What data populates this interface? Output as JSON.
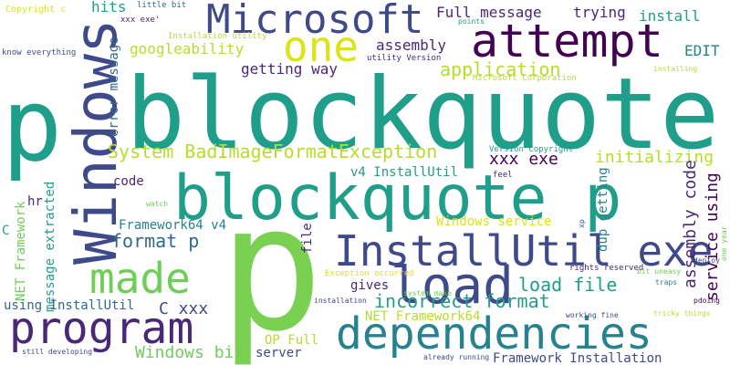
{
  "colors": {
    "teal": "#1f9e89",
    "navy": "#3e4a89",
    "purple": "#482878",
    "dark": "#440154",
    "green": "#6ece58",
    "lime": "#b5de2b",
    "yellow": "#dde318",
    "cyan": "#26828e",
    "slate": "#31688e"
  },
  "words": [
    "blockquote",
    "p",
    "Windows",
    "blockquote p",
    "attempt",
    "Microsoft",
    "one",
    "load",
    "InstallUtil exe",
    "made",
    "program",
    "dependencies",
    "incorrect format",
    "load file",
    "System BadImageFormatException",
    "Windows bit",
    "format p",
    "application",
    "initializing",
    "assembly code",
    "service using",
    "getting way",
    "googleability",
    "error message",
    "xxx exe",
    "Full message",
    "trying",
    "install",
    "EDIT",
    "assembly",
    "hits",
    "Copyright c",
    "little bit",
    "xxx exe'",
    "Installation utility",
    "utility Version",
    "know everything",
    "points",
    "Microsoft Corporation",
    "installing",
    "code",
    "v4 InstallUtil",
    "Version Copyright",
    "feel",
    "xp",
    "deploy",
    "dup getting",
    "Framework64 v4",
    "message extracted",
    "NET Framework",
    "hr",
    "C",
    "watch",
    "Windows service",
    "file",
    "Exception occurred",
    "system make",
    "rights reserved",
    "bit uneasy",
    "one year",
    "traps",
    "gives",
    "using InstallUtil",
    "C xxx",
    "NET Framework64",
    "OP Full",
    "server",
    "installation",
    "working fine",
    "tricky things",
    "pdoing",
    "still developing",
    "already running",
    "Framework Installation"
  ]
}
